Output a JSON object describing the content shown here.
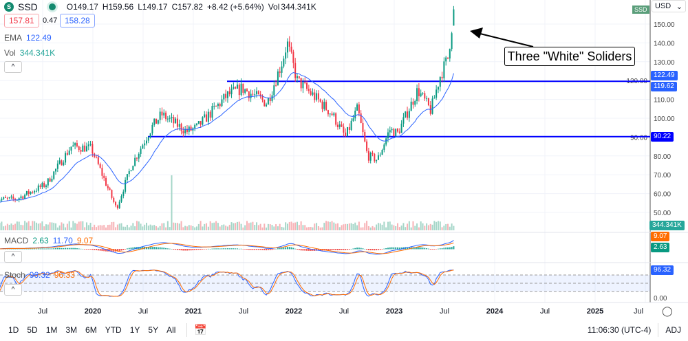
{
  "symbol": {
    "logo": "S",
    "ticker": "SSD"
  },
  "ohlc": {
    "o": "O149.17",
    "h": "H159.56",
    "l": "L149.17",
    "c": "C157.82",
    "chg": "+8.42 (+5.64%)",
    "vol_label": "Vol",
    "vol": "344.341K"
  },
  "quote": {
    "bid": "157.81",
    "spread": "0.47",
    "ask": "158.28"
  },
  "indicators": {
    "ema": {
      "label": "EMA",
      "value": "122.49"
    },
    "vol": {
      "label": "Vol",
      "value": "344.341K"
    },
    "macd": {
      "label": "MACD",
      "hist": "2.63",
      "macd": "11.70",
      "signal": "9.07"
    },
    "stoch": {
      "label": "Stoch",
      "k": "96.32",
      "d": "96.33"
    }
  },
  "currency": "USD",
  "annotation": "Three \"White\" Soliders",
  "price_tags": {
    "symbol": "SSD",
    "ema": "122.49",
    "line_high": "119.62",
    "line_low": "90.22",
    "volume": "344.341K",
    "macd_signal": "9.07",
    "macd_hist": "2.63",
    "stoch": "96.32"
  },
  "colors": {
    "up": "#089981",
    "down": "#f23645",
    "ema": "#2962ff",
    "macd": "#2962ff",
    "signal": "#ff6d00",
    "hline": "#0000ff"
  },
  "timeframes": [
    "1D",
    "5D",
    "1M",
    "3M",
    "6M",
    "YTD",
    "1Y",
    "5Y",
    "All"
  ],
  "clock": "11:06:30 (UTC-4)",
  "adj": "ADJ",
  "chart_data": {
    "type": "candlestick",
    "price_axis": {
      "ticks": [
        50,
        60,
        70,
        80,
        90,
        100,
        110,
        120,
        130,
        140,
        150
      ],
      "ylim": [
        45,
        160
      ]
    },
    "stoch_axis": {
      "ticks": [
        "0.00"
      ]
    },
    "time_ticks": [
      "Jul",
      "2020",
      "Jul",
      "2021",
      "Jul",
      "2022",
      "Jul",
      "2023",
      "Jul",
      "2024",
      "Jul",
      "2025",
      "Jul"
    ],
    "horizontal_lines": [
      119.62,
      90.22
    ],
    "approx_close_path": [
      [
        2019.2,
        57
      ],
      [
        2019.5,
        65
      ],
      [
        2019.75,
        85
      ],
      [
        2019.95,
        84
      ],
      [
        2020.2,
        52
      ],
      [
        2020.35,
        75
      ],
      [
        2020.55,
        95
      ],
      [
        2020.65,
        102
      ],
      [
        2020.9,
        93
      ],
      [
        2021.0,
        95
      ],
      [
        2021.3,
        112
      ],
      [
        2021.45,
        116
      ],
      [
        2021.7,
        108
      ],
      [
        2021.85,
        130
      ],
      [
        2021.9,
        140
      ],
      [
        2022.0,
        120
      ],
      [
        2022.2,
        110
      ],
      [
        2022.35,
        102
      ],
      [
        2022.48,
        90
      ],
      [
        2022.6,
        105
      ],
      [
        2022.7,
        80
      ],
      [
        2022.8,
        78
      ],
      [
        2022.92,
        94
      ],
      [
        2023.0,
        92
      ],
      [
        2023.2,
        115
      ],
      [
        2023.33,
        104
      ],
      [
        2023.42,
        122
      ],
      [
        2023.5,
        132
      ],
      [
        2023.56,
        157.82
      ]
    ],
    "last": {
      "open": 149.17,
      "high": 159.56,
      "low": 149.17,
      "close": 157.82
    }
  }
}
